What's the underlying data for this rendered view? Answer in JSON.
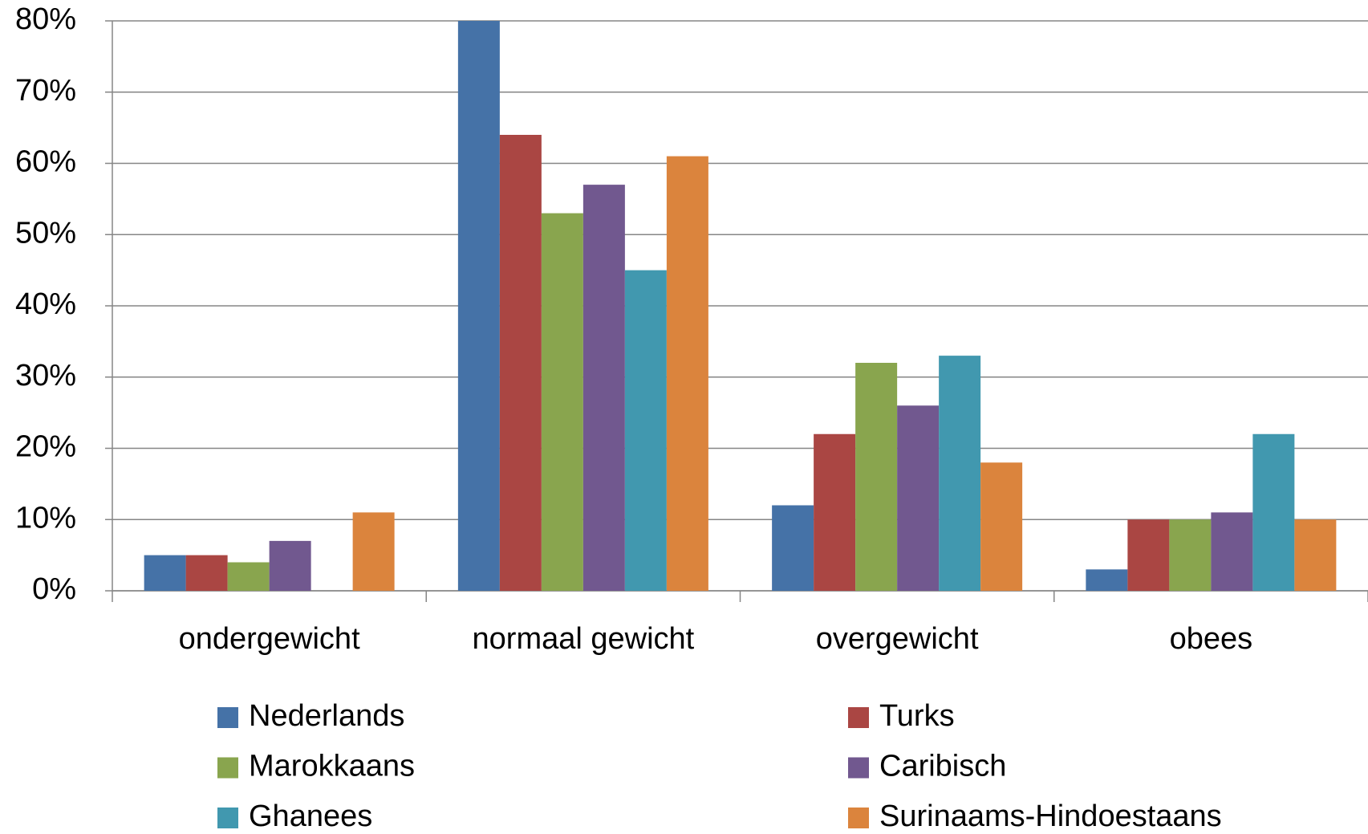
{
  "chart_data": {
    "type": "bar",
    "categories": [
      "ondergewicht",
      "normaal gewicht",
      "overgewicht",
      "obees"
    ],
    "series": [
      {
        "name": "Nederlands",
        "color": "#4572a7",
        "values": [
          5,
          80,
          12,
          3
        ]
      },
      {
        "name": "Turks",
        "color": "#aa4643",
        "values": [
          5,
          64,
          22,
          10
        ]
      },
      {
        "name": "Marokkaans",
        "color": "#89a54e",
        "values": [
          4,
          53,
          32,
          10
        ]
      },
      {
        "name": "Caribisch",
        "color": "#71588f",
        "values": [
          7,
          57,
          26,
          11
        ]
      },
      {
        "name": "Ghanees",
        "color": "#4198af",
        "values": [
          0,
          45,
          33,
          22
        ]
      },
      {
        "name": "Surinaams-Hindoestaans",
        "color": "#db843d",
        "values": [
          11,
          61,
          18,
          10
        ]
      }
    ],
    "ylim": [
      0,
      80
    ],
    "yticks": [
      {
        "value": 0,
        "label": "0%"
      },
      {
        "value": 10,
        "label": "10%"
      },
      {
        "value": 20,
        "label": "20%"
      },
      {
        "value": 30,
        "label": "30%"
      },
      {
        "value": 40,
        "label": "40%"
      },
      {
        "value": 50,
        "label": "50%"
      },
      {
        "value": 60,
        "label": "60%"
      },
      {
        "value": 70,
        "label": "70%"
      },
      {
        "value": 80,
        "label": "80%"
      }
    ],
    "grid": true,
    "legend": "bottom"
  }
}
